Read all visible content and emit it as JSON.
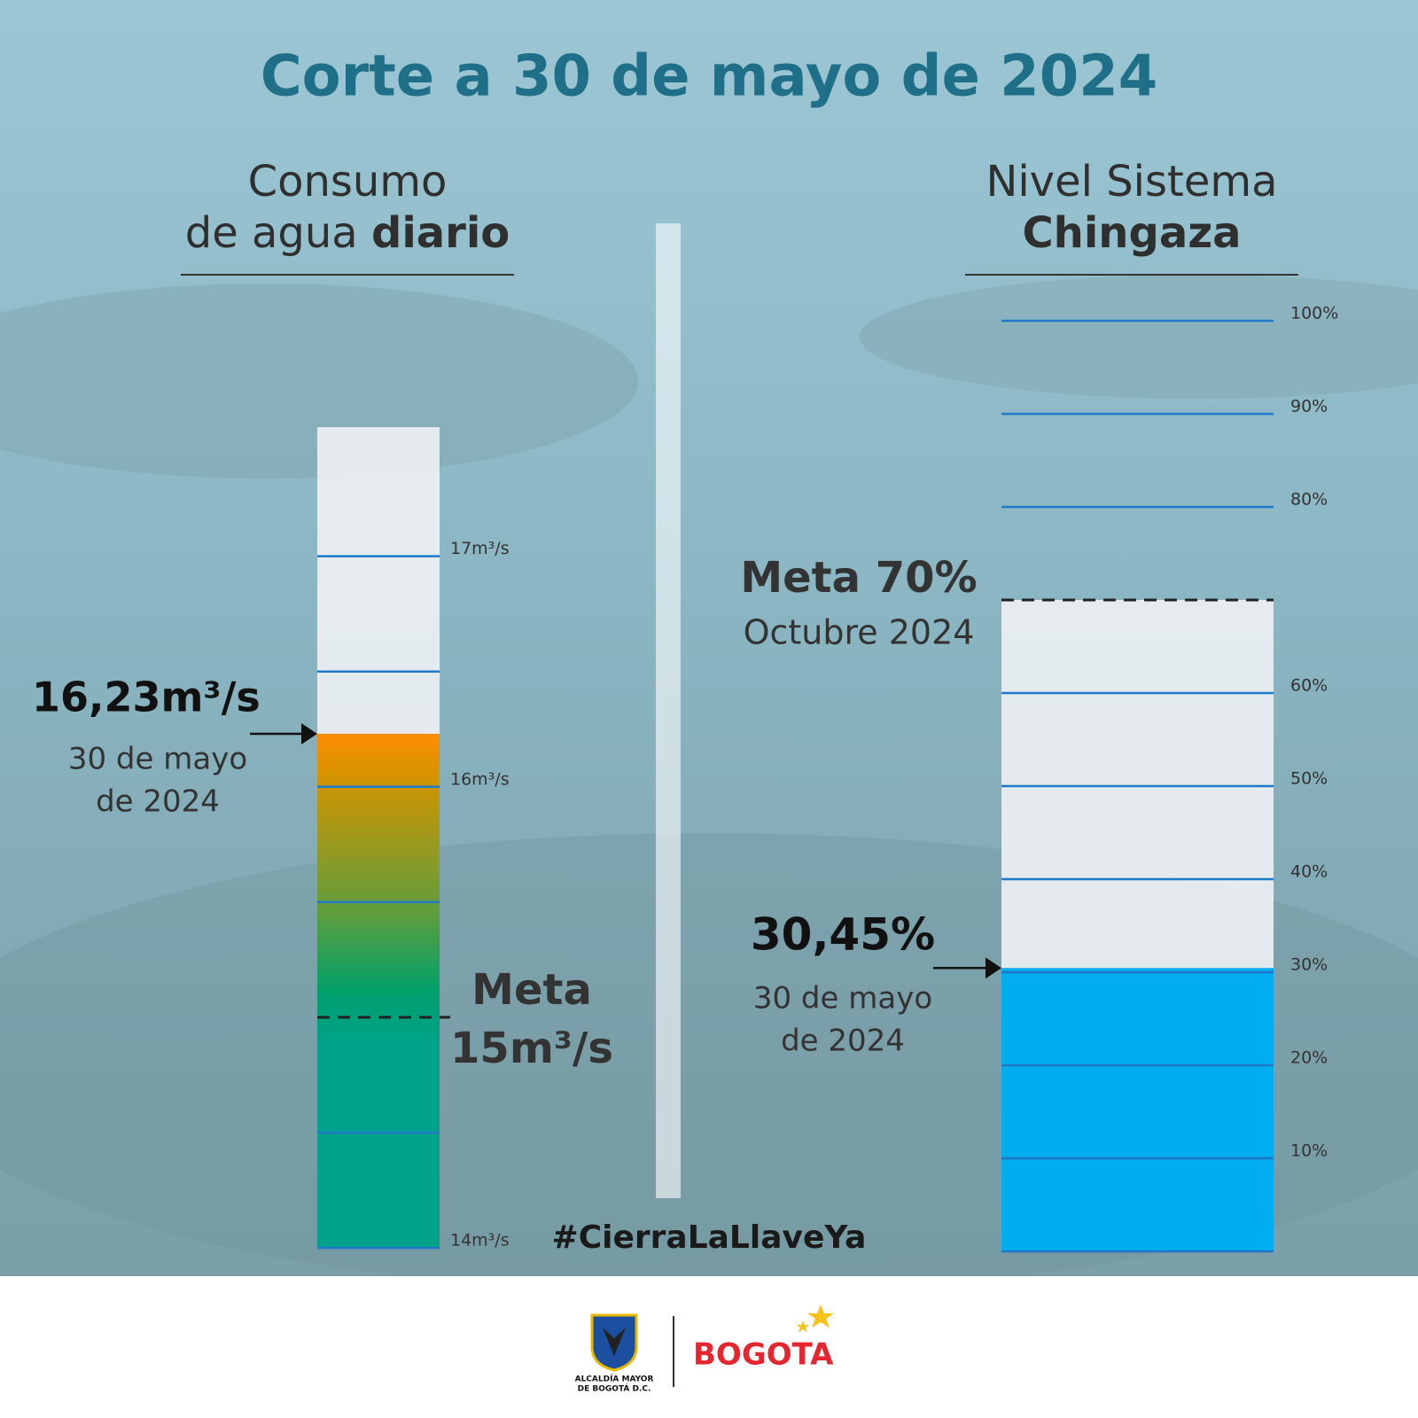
{
  "title": "Corte a 30 de mayo de 2024",
  "hashtag": "#CierraLaLlaveYa",
  "footer": {
    "left_logo": [
      "ALCALDÍA MAYOR",
      "DE BOGOTÁ D.C."
    ],
    "right_logo": "BOGOTA"
  },
  "chart_data": [
    {
      "type": "gauge",
      "title": [
        "Consumo",
        "de agua"
      ],
      "title_bold": "diario",
      "title_bold_inline": true,
      "value": 16.23,
      "value_label": "16,23m³/s",
      "annotation": [
        "30 de mayo",
        "de 2024"
      ],
      "target": {
        "value": 15,
        "label": [
          "Meta",
          "15m³/s"
        ]
      },
      "ylim": [
        14,
        17.56
      ],
      "yticks": [
        {
          "value": 14,
          "label": "14m³/s"
        },
        {
          "value": 16,
          "label": "16m³/s"
        },
        {
          "value": 17,
          "label": "17m³/s"
        }
      ],
      "minor_ticks": [
        14.5,
        15.5,
        16.5
      ],
      "track": "full",
      "colors": [
        "#ff8c00",
        "#d59400",
        "#5e9e3c",
        "#00a06a",
        "#00a28a"
      ]
    },
    {
      "type": "gauge",
      "title": [
        "Nivel Sistema"
      ],
      "title_bold": "Chingaza",
      "title_bold_inline": false,
      "value": 30.45,
      "value_label": "30,45%",
      "annotation": [
        "30 de mayo",
        "de 2024"
      ],
      "target": {
        "value": 70,
        "label": [
          "Meta 70%",
          "Octubre 2024"
        ]
      },
      "ylim": [
        0,
        100
      ],
      "yticks": [
        {
          "value": 10,
          "label": "10%"
        },
        {
          "value": 20,
          "label": "20%"
        },
        {
          "value": 30,
          "label": "30%"
        },
        {
          "value": 40,
          "label": "40%"
        },
        {
          "value": 50,
          "label": "50%"
        },
        {
          "value": 60,
          "label": "60%"
        },
        {
          "value": 80,
          "label": "80%"
        },
        {
          "value": 90,
          "label": "90%"
        },
        {
          "value": 100,
          "label": "100%"
        }
      ],
      "minor_ticks": [
        0
      ],
      "track": "target",
      "colors": [
        "#00aeef"
      ]
    }
  ]
}
